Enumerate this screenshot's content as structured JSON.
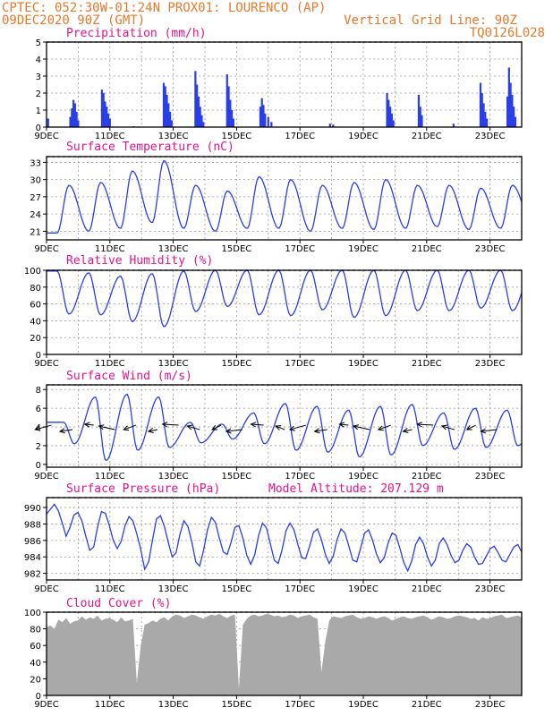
{
  "header": {
    "line1_left": "CPTEC:   052:30W-01:24N  PROX01: LOURENCO (AP)",
    "line2_left": "09DEC2020 90Z (GMT)",
    "line2_right": "Vertical Grid Line: 90Z",
    "line3_right": "TQ0126L028",
    "model_altitude": "Model Altitude: 207.129 m"
  },
  "colors": {
    "header": "#e8782a",
    "panel_title": "#e0158a",
    "series": "#2a3fe8",
    "bars": "#2a3fe8",
    "cloud": "#a9a9a9"
  },
  "x_tick_labels": [
    "9DEC",
    "11DEC",
    "13DEC",
    "15DEC",
    "17DEC",
    "19DEC",
    "21DEC",
    "23DEC"
  ],
  "chart_data": [
    {
      "type": "bar",
      "title": "Precipitation (mm/h)",
      "x_unit": "days since 9DEC 00Z",
      "ylim": [
        0,
        5
      ],
      "yticks": [
        0,
        1,
        2,
        3,
        4,
        5
      ],
      "grid": true,
      "events": [
        {
          "x": 0.05,
          "value": 0.5
        },
        {
          "x": 0.75,
          "value": 0.6
        },
        {
          "x": 0.8,
          "value": 1.1
        },
        {
          "x": 0.85,
          "value": 1.6
        },
        {
          "x": 0.9,
          "value": 1.4
        },
        {
          "x": 0.95,
          "value": 0.9
        },
        {
          "x": 1.0,
          "value": 0.4
        },
        {
          "x": 1.75,
          "value": 2.2
        },
        {
          "x": 1.8,
          "value": 2.0
        },
        {
          "x": 1.85,
          "value": 1.5
        },
        {
          "x": 1.9,
          "value": 1.2
        },
        {
          "x": 1.95,
          "value": 0.8
        },
        {
          "x": 2.0,
          "value": 0.5
        },
        {
          "x": 2.75,
          "value": 0.05
        },
        {
          "x": 3.7,
          "value": 2.6
        },
        {
          "x": 3.75,
          "value": 2.4
        },
        {
          "x": 3.8,
          "value": 1.9
        },
        {
          "x": 3.85,
          "value": 1.4
        },
        {
          "x": 3.9,
          "value": 0.9
        },
        {
          "x": 3.95,
          "value": 0.4
        },
        {
          "x": 4.7,
          "value": 3.3
        },
        {
          "x": 4.75,
          "value": 2.5
        },
        {
          "x": 4.8,
          "value": 1.8
        },
        {
          "x": 4.85,
          "value": 1.2
        },
        {
          "x": 4.9,
          "value": 0.7
        },
        {
          "x": 4.95,
          "value": 0.3
        },
        {
          "x": 5.7,
          "value": 3.1
        },
        {
          "x": 5.75,
          "value": 2.4
        },
        {
          "x": 5.8,
          "value": 1.6
        },
        {
          "x": 5.85,
          "value": 1.0
        },
        {
          "x": 5.9,
          "value": 0.5
        },
        {
          "x": 6.75,
          "value": 1.2
        },
        {
          "x": 6.8,
          "value": 1.7
        },
        {
          "x": 6.85,
          "value": 1.3
        },
        {
          "x": 6.9,
          "value": 0.8
        },
        {
          "x": 7.0,
          "value": 0.6
        },
        {
          "x": 7.1,
          "value": 0.3
        },
        {
          "x": 8.95,
          "value": 0.2
        },
        {
          "x": 9.05,
          "value": 0.15
        },
        {
          "x": 10.75,
          "value": 2.0
        },
        {
          "x": 10.8,
          "value": 1.6
        },
        {
          "x": 10.85,
          "value": 1.2
        },
        {
          "x": 10.9,
          "value": 0.8
        },
        {
          "x": 10.95,
          "value": 0.4
        },
        {
          "x": 11.75,
          "value": 1.9
        },
        {
          "x": 11.8,
          "value": 1.2
        },
        {
          "x": 11.85,
          "value": 0.7
        },
        {
          "x": 12.85,
          "value": 0.2
        },
        {
          "x": 13.7,
          "value": 2.6
        },
        {
          "x": 13.75,
          "value": 2.0
        },
        {
          "x": 13.8,
          "value": 1.4
        },
        {
          "x": 13.85,
          "value": 0.9
        },
        {
          "x": 13.9,
          "value": 0.5
        },
        {
          "x": 14.55,
          "value": 1.8
        },
        {
          "x": 14.6,
          "value": 3.5
        },
        {
          "x": 14.65,
          "value": 2.6
        },
        {
          "x": 14.7,
          "value": 1.9
        },
        {
          "x": 14.75,
          "value": 1.2
        },
        {
          "x": 14.8,
          "value": 0.6
        }
      ]
    },
    {
      "type": "line",
      "title": "Surface Temperature (nC)",
      "x_unit": "days since 9DEC 00Z",
      "ylim": [
        19.5,
        34
      ],
      "yticks": [
        21,
        24,
        27,
        30,
        33
      ],
      "grid": true,
      "daily_max": [
        29,
        29.5,
        31.5,
        33.3,
        29,
        28,
        30.5,
        30,
        29,
        29.5,
        30,
        29,
        29,
        28.5,
        29,
        27.5
      ],
      "daily_min": [
        20.7,
        21,
        21.5,
        22.5,
        21.5,
        21,
        21.5,
        21.5,
        21,
        21.5,
        21.3,
        21.5,
        21.8,
        21.3,
        21.5,
        22.5
      ]
    },
    {
      "type": "line",
      "title": "Relative Humidity (%)",
      "x_unit": "days since 9DEC 00Z",
      "ylim": [
        0,
        100
      ],
      "yticks": [
        0,
        20,
        40,
        60,
        80,
        100
      ],
      "grid": true,
      "daily_max": [
        99,
        97,
        93,
        96,
        99,
        100,
        100,
        100,
        100,
        100,
        100,
        100,
        100,
        100,
        100,
        100
      ],
      "daily_min": [
        48,
        47,
        39,
        33,
        51,
        57,
        47,
        46,
        53,
        44,
        46,
        52,
        52,
        55,
        52,
        62
      ]
    },
    {
      "type": "line",
      "title": "Surface Wind (m/s)",
      "x_unit": "days since 9DEC 00Z",
      "ylim": [
        -0.3,
        8.5
      ],
      "yticks": [
        0,
        2,
        4,
        6,
        8
      ],
      "grid": true,
      "daily_max": [
        4.5,
        7.2,
        7.5,
        7.2,
        4.5,
        4.3,
        5.5,
        6.5,
        6.2,
        5.8,
        6.2,
        6.4,
        5.5,
        6.0,
        5.8,
        4.8
      ],
      "daily_min": [
        2.2,
        0.4,
        1.5,
        1.8,
        2.3,
        2.7,
        2.2,
        1.5,
        1.3,
        0.8,
        1.0,
        2.0,
        1.6,
        1.8,
        2.0,
        2.2
      ],
      "wind_barbs": "arrows pointing toward west-northwest along 4 m/s level"
    },
    {
      "type": "line",
      "title": "Surface Pressure (hPa)",
      "x_unit": "days since 9DEC 00Z",
      "ylim": [
        981.2,
        991.2
      ],
      "yticks": [
        982,
        984,
        986,
        988,
        990
      ],
      "grid": true,
      "values": [
        989.2,
        989.8,
        990.4,
        989.6,
        988.1,
        986.5,
        987.6,
        989.1,
        989.4,
        988.4,
        986.5,
        984.8,
        985.2,
        987.6,
        989.5,
        989.3,
        987.8,
        986.0,
        985.0,
        985.9,
        987.8,
        988.9,
        988.4,
        986.8,
        984.9,
        982.5,
        983.4,
        986.1,
        988.6,
        989.0,
        987.7,
        985.8,
        984.0,
        984.5,
        986.8,
        988.4,
        987.7,
        985.8,
        983.4,
        982.9,
        984.8,
        987.3,
        988.8,
        988.2,
        986.3,
        984.6,
        984.3,
        985.8,
        987.6,
        987.8,
        986.3,
        984.2,
        983.1,
        984.2,
        986.6,
        988.1,
        987.5,
        985.6,
        983.6,
        983.2,
        984.9,
        987.2,
        988.1,
        987.3,
        985.5,
        983.9,
        983.8,
        985.3,
        987.0,
        987.4,
        986.1,
        984.3,
        983.2,
        984.1,
        986.1,
        987.4,
        986.9,
        985.3,
        983.6,
        983.4,
        985.1,
        986.9,
        987.3,
        986.1,
        984.4,
        983.3,
        983.9,
        985.7,
        986.9,
        986.6,
        985.0,
        983.3,
        982.3,
        983.5,
        985.5,
        986.4,
        985.6,
        984.0,
        982.9,
        983.6,
        985.6,
        986.3,
        985.5,
        984.2,
        983.3,
        983.6,
        984.8,
        985.6,
        985.2,
        984.0,
        983.1,
        983.2,
        984.1,
        985.0,
        985.3,
        984.5,
        983.6,
        983.4,
        984.3,
        985.2,
        985.5,
        984.6
      ]
    },
    {
      "type": "area",
      "title": "Cloud Cover (%)",
      "x_unit": "days since 9DEC 00Z",
      "ylim": [
        0,
        100
      ],
      "yticks": [
        0,
        20,
        40,
        60,
        80,
        100
      ],
      "grid": true,
      "values": [
        82,
        84,
        80,
        91,
        88,
        93,
        86,
        89,
        90,
        95,
        91,
        94,
        92,
        96,
        90,
        92,
        93,
        91,
        88,
        94,
        89,
        90,
        92,
        15,
        60,
        85,
        87,
        90,
        88,
        92,
        94,
        90,
        95,
        97,
        96,
        93,
        95,
        97,
        96,
        94,
        92,
        95,
        97,
        96,
        98,
        95,
        93,
        96,
        97,
        8,
        85,
        92,
        96,
        97,
        95,
        96,
        98,
        97,
        95,
        96,
        94,
        95,
        97,
        96,
        93,
        95,
        96,
        97,
        94,
        92,
        28,
        65,
        90,
        95,
        94,
        93,
        95,
        96,
        97,
        94,
        92,
        93,
        95,
        94,
        92,
        94,
        95,
        93,
        90,
        92,
        94,
        95,
        93,
        92,
        94,
        95,
        96,
        94,
        91,
        93,
        95,
        94,
        92,
        93,
        95,
        96,
        95,
        94,
        92,
        93,
        90,
        94,
        92,
        93,
        95,
        96,
        97,
        93,
        94,
        95,
        96,
        94
      ]
    }
  ]
}
